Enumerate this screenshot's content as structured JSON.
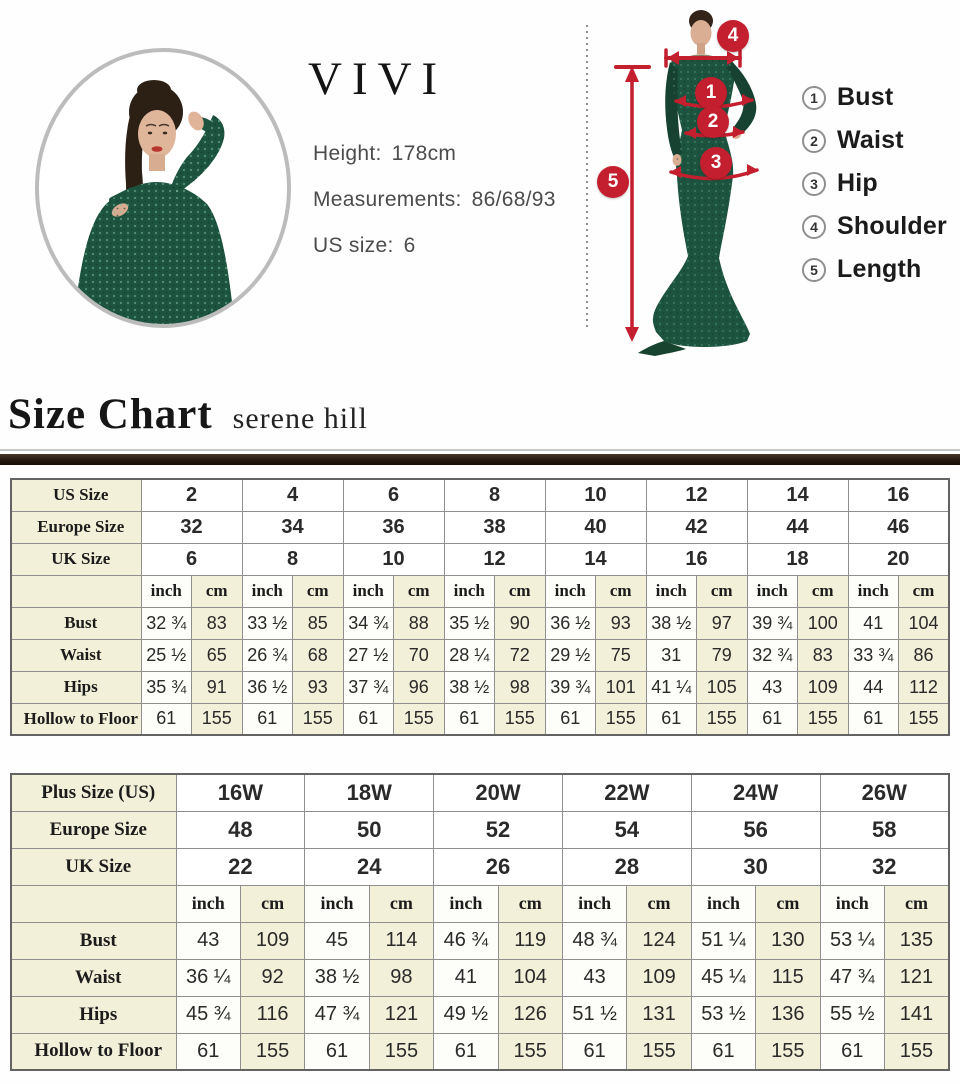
{
  "colors": {
    "accent_red": "#c41f2f",
    "table_cream": "#f3f0da",
    "header_bar_brown": "#261910",
    "dress_green": "#1d5440"
  },
  "model_info": {
    "brand": "VIVI",
    "height_label": "Height:",
    "height_value": "178cm",
    "measurements_label": "Measurements:",
    "measurements_value": "86/68/93",
    "us_size_label": "US size:",
    "us_size_value": "6"
  },
  "diagram": {
    "markers": {
      "bust": "1",
      "waist": "2",
      "hip": "3",
      "shoulder": "4",
      "length": "5"
    },
    "legend": [
      {
        "num": "1",
        "label": "Bust"
      },
      {
        "num": "2",
        "label": "Waist"
      },
      {
        "num": "3",
        "label": "Hip"
      },
      {
        "num": "4",
        "label": "Shoulder"
      },
      {
        "num": "5",
        "label": "Length"
      }
    ]
  },
  "size_chart_header": {
    "title": "Size Chart",
    "subtitle": "serene hill"
  },
  "regular_table": {
    "units": {
      "inch": "inch",
      "cm": "cm"
    },
    "header_rows": [
      {
        "label": "US Size",
        "values": [
          "2",
          "4",
          "6",
          "8",
          "10",
          "12",
          "14",
          "16"
        ]
      },
      {
        "label": "Europe Size",
        "values": [
          "32",
          "34",
          "36",
          "38",
          "40",
          "42",
          "44",
          "46"
        ]
      },
      {
        "label": "UK Size",
        "values": [
          "6",
          "8",
          "10",
          "12",
          "14",
          "16",
          "18",
          "20"
        ]
      }
    ],
    "rows": [
      {
        "label": "Bust",
        "inch": [
          "32 ¾",
          "33 ½",
          "34 ¾",
          "35 ½",
          "36 ½",
          "38 ½",
          "39 ¾",
          "41"
        ],
        "cm": [
          "83",
          "85",
          "88",
          "90",
          "93",
          "97",
          "100",
          "104"
        ]
      },
      {
        "label": "Waist",
        "inch": [
          "25 ½",
          "26 ¾",
          "27 ½",
          "28 ¼",
          "29 ½",
          "31",
          "32 ¾",
          "33 ¾"
        ],
        "cm": [
          "65",
          "68",
          "70",
          "72",
          "75",
          "79",
          "83",
          "86"
        ]
      },
      {
        "label": "Hips",
        "inch": [
          "35 ¾",
          "36 ½",
          "37 ¾",
          "38 ½",
          "39 ¾",
          "41 ¼",
          "43",
          "44"
        ],
        "cm": [
          "91",
          "93",
          "96",
          "98",
          "101",
          "105",
          "109",
          "112"
        ]
      },
      {
        "label": "Hollow to Floor",
        "inch": [
          "61",
          "61",
          "61",
          "61",
          "61",
          "61",
          "61",
          "61"
        ],
        "cm": [
          "155",
          "155",
          "155",
          "155",
          "155",
          "155",
          "155",
          "155"
        ]
      }
    ]
  },
  "plus_table": {
    "units": {
      "inch": "inch",
      "cm": "cm"
    },
    "header_rows": [
      {
        "label": "Plus Size (US)",
        "values": [
          "16W",
          "18W",
          "20W",
          "22W",
          "24W",
          "26W"
        ]
      },
      {
        "label": "Europe Size",
        "values": [
          "48",
          "50",
          "52",
          "54",
          "56",
          "58"
        ]
      },
      {
        "label": "UK Size",
        "values": [
          "22",
          "24",
          "26",
          "28",
          "30",
          "32"
        ]
      }
    ],
    "rows": [
      {
        "label": "Bust",
        "inch": [
          "43",
          "45",
          "46 ¾",
          "48 ¾",
          "51 ¼",
          "53 ¼"
        ],
        "cm": [
          "109",
          "114",
          "119",
          "124",
          "130",
          "135"
        ]
      },
      {
        "label": "Waist",
        "inch": [
          "36 ¼",
          "38 ½",
          "41",
          "43",
          "45 ¼",
          "47 ¾"
        ],
        "cm": [
          "92",
          "98",
          "104",
          "109",
          "115",
          "121"
        ]
      },
      {
        "label": "Hips",
        "inch": [
          "45 ¾",
          "47 ¾",
          "49 ½",
          "51 ½",
          "53 ½",
          "55 ½"
        ],
        "cm": [
          "116",
          "121",
          "126",
          "131",
          "136",
          "141"
        ]
      },
      {
        "label": "Hollow to Floor",
        "inch": [
          "61",
          "61",
          "61",
          "61",
          "61",
          "61"
        ],
        "cm": [
          "155",
          "155",
          "155",
          "155",
          "155",
          "155"
        ]
      }
    ]
  }
}
